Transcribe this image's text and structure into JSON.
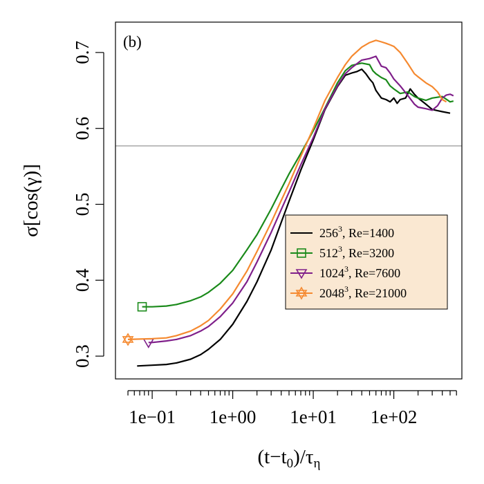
{
  "chart_data": {
    "type": "line",
    "panel_label": "(b)",
    "xlabel": "(t−t0)/τη",
    "xlabel_parts": {
      "main": "(t−t",
      "sub0": "0",
      "mid": ")/τ",
      "sub1": "η"
    },
    "ylabel": "σ[cos(γ)]",
    "x_scale": "log10",
    "xlim": [
      0.035,
      700
    ],
    "ylim": [
      0.27,
      0.74
    ],
    "x_ticks_major": [
      0.1,
      1,
      10,
      100
    ],
    "x_tick_labels": [
      "1e−01",
      "1e+00",
      "1e+01",
      "1e+02"
    ],
    "y_ticks": [
      0.3,
      0.4,
      0.5,
      0.6,
      0.7
    ],
    "y_tick_labels": [
      "0.3",
      "0.4",
      "0.5",
      "0.6",
      "0.7"
    ],
    "reference_line": {
      "y": 0.577,
      "color": "#bdbdbd"
    },
    "legend_position": "right",
    "legend_background": "#fae8d2",
    "series": [
      {
        "name": "256³, Re=1400",
        "label_base": "256",
        "label_sup": "3",
        "label_rest": ", Re=1400",
        "color": "#000000",
        "marker": "none",
        "points": [
          [
            0.065,
            0.287
          ],
          [
            0.1,
            0.288
          ],
          [
            0.15,
            0.289
          ],
          [
            0.2,
            0.291
          ],
          [
            0.3,
            0.296
          ],
          [
            0.4,
            0.302
          ],
          [
            0.5,
            0.309
          ],
          [
            0.7,
            0.322
          ],
          [
            1.0,
            0.342
          ],
          [
            1.5,
            0.372
          ],
          [
            2.0,
            0.398
          ],
          [
            3.0,
            0.44
          ],
          [
            4.0,
            0.476
          ],
          [
            5.0,
            0.504
          ],
          [
            7.0,
            0.545
          ],
          [
            10.0,
            0.585
          ],
          [
            14.0,
            0.625
          ],
          [
            20.0,
            0.655
          ],
          [
            25.0,
            0.67
          ],
          [
            30.0,
            0.673
          ],
          [
            35.0,
            0.675
          ],
          [
            40.0,
            0.678
          ],
          [
            45.0,
            0.672
          ],
          [
            50.0,
            0.665
          ],
          [
            55.0,
            0.66
          ],
          [
            60.0,
            0.65
          ],
          [
            70.0,
            0.64
          ],
          [
            80.0,
            0.638
          ],
          [
            90.0,
            0.635
          ],
          [
            100.0,
            0.64
          ],
          [
            110.0,
            0.633
          ],
          [
            120.0,
            0.638
          ],
          [
            140.0,
            0.64
          ],
          [
            160.0,
            0.652
          ],
          [
            180.0,
            0.645
          ],
          [
            200.0,
            0.64
          ],
          [
            250.0,
            0.632
          ],
          [
            300.0,
            0.625
          ],
          [
            400.0,
            0.622
          ],
          [
            500.0,
            0.62
          ]
        ],
        "marker_point": null
      },
      {
        "name": "512³, Re=3200",
        "label_base": "512",
        "label_sup": "3",
        "label_rest": ", Re=3200",
        "color": "#1a8a1a",
        "marker": "square",
        "points": [
          [
            0.075,
            0.365
          ],
          [
            0.1,
            0.365
          ],
          [
            0.15,
            0.366
          ],
          [
            0.2,
            0.368
          ],
          [
            0.3,
            0.373
          ],
          [
            0.4,
            0.378
          ],
          [
            0.5,
            0.384
          ],
          [
            0.7,
            0.396
          ],
          [
            1.0,
            0.413
          ],
          [
            1.5,
            0.44
          ],
          [
            2.0,
            0.46
          ],
          [
            3.0,
            0.494
          ],
          [
            4.0,
            0.52
          ],
          [
            5.0,
            0.54
          ],
          [
            7.0,
            0.567
          ],
          [
            10.0,
            0.597
          ],
          [
            14.0,
            0.627
          ],
          [
            20.0,
            0.66
          ],
          [
            25.0,
            0.676
          ],
          [
            30.0,
            0.683
          ],
          [
            40.0,
            0.686
          ],
          [
            50.0,
            0.684
          ],
          [
            55.0,
            0.676
          ],
          [
            60.0,
            0.672
          ],
          [
            70.0,
            0.667
          ],
          [
            80.0,
            0.664
          ],
          [
            90.0,
            0.656
          ],
          [
            100.0,
            0.652
          ],
          [
            120.0,
            0.646
          ],
          [
            150.0,
            0.648
          ],
          [
            180.0,
            0.642
          ],
          [
            200.0,
            0.64
          ],
          [
            250.0,
            0.637
          ],
          [
            300.0,
            0.64
          ],
          [
            400.0,
            0.642
          ],
          [
            500.0,
            0.635
          ],
          [
            550.0,
            0.636
          ]
        ],
        "marker_point": [
          0.075,
          0.365
        ]
      },
      {
        "name": "1024³, Re=7600",
        "label_base": "1024",
        "label_sup": "3",
        "label_rest": ", Re=7600",
        "color": "#7f1f8a",
        "marker": "triangle-down",
        "points": [
          [
            0.09,
            0.318
          ],
          [
            0.1,
            0.318
          ],
          [
            0.15,
            0.32
          ],
          [
            0.2,
            0.322
          ],
          [
            0.3,
            0.327
          ],
          [
            0.4,
            0.333
          ],
          [
            0.5,
            0.339
          ],
          [
            0.7,
            0.352
          ],
          [
            1.0,
            0.37
          ],
          [
            1.5,
            0.398
          ],
          [
            2.0,
            0.424
          ],
          [
            3.0,
            0.463
          ],
          [
            4.0,
            0.493
          ],
          [
            5.0,
            0.516
          ],
          [
            7.0,
            0.552
          ],
          [
            10.0,
            0.588
          ],
          [
            14.0,
            0.626
          ],
          [
            20.0,
            0.656
          ],
          [
            25.0,
            0.672
          ],
          [
            30.0,
            0.68
          ],
          [
            40.0,
            0.69
          ],
          [
            50.0,
            0.692
          ],
          [
            60.0,
            0.695
          ],
          [
            70.0,
            0.682
          ],
          [
            80.0,
            0.68
          ],
          [
            90.0,
            0.673
          ],
          [
            100.0,
            0.665
          ],
          [
            120.0,
            0.656
          ],
          [
            150.0,
            0.643
          ],
          [
            180.0,
            0.632
          ],
          [
            200.0,
            0.628
          ],
          [
            250.0,
            0.626
          ],
          [
            300.0,
            0.624
          ],
          [
            350.0,
            0.63
          ],
          [
            400.0,
            0.64
          ],
          [
            450.0,
            0.644
          ],
          [
            500.0,
            0.645
          ],
          [
            550.0,
            0.643
          ]
        ],
        "marker_point": [
          0.09,
          0.318
        ]
      },
      {
        "name": "2048³, Re=21000",
        "label_base": "2048",
        "label_sup": "3",
        "label_rest": ", Re=21000",
        "color": "#f5892f",
        "marker": "star",
        "points": [
          [
            0.05,
            0.322
          ],
          [
            0.1,
            0.323
          ],
          [
            0.15,
            0.324
          ],
          [
            0.2,
            0.327
          ],
          [
            0.3,
            0.333
          ],
          [
            0.4,
            0.34
          ],
          [
            0.5,
            0.347
          ],
          [
            0.7,
            0.362
          ],
          [
            1.0,
            0.382
          ],
          [
            1.5,
            0.412
          ],
          [
            2.0,
            0.438
          ],
          [
            3.0,
            0.476
          ],
          [
            4.0,
            0.505
          ],
          [
            5.0,
            0.527
          ],
          [
            7.0,
            0.563
          ],
          [
            10.0,
            0.6
          ],
          [
            14.0,
            0.637
          ],
          [
            20.0,
            0.667
          ],
          [
            25.0,
            0.684
          ],
          [
            30.0,
            0.695
          ],
          [
            40.0,
            0.707
          ],
          [
            50.0,
            0.713
          ],
          [
            60.0,
            0.716
          ],
          [
            70.0,
            0.714
          ],
          [
            80.0,
            0.712
          ],
          [
            90.0,
            0.71
          ],
          [
            100.0,
            0.708
          ],
          [
            120.0,
            0.7
          ],
          [
            150.0,
            0.685
          ],
          [
            180.0,
            0.672
          ],
          [
            200.0,
            0.668
          ],
          [
            250.0,
            0.66
          ],
          [
            300.0,
            0.655
          ],
          [
            350.0,
            0.648
          ],
          [
            400.0,
            0.638
          ],
          [
            450.0,
            0.635
          ]
        ],
        "marker_point": [
          0.05,
          0.322
        ]
      }
    ]
  }
}
